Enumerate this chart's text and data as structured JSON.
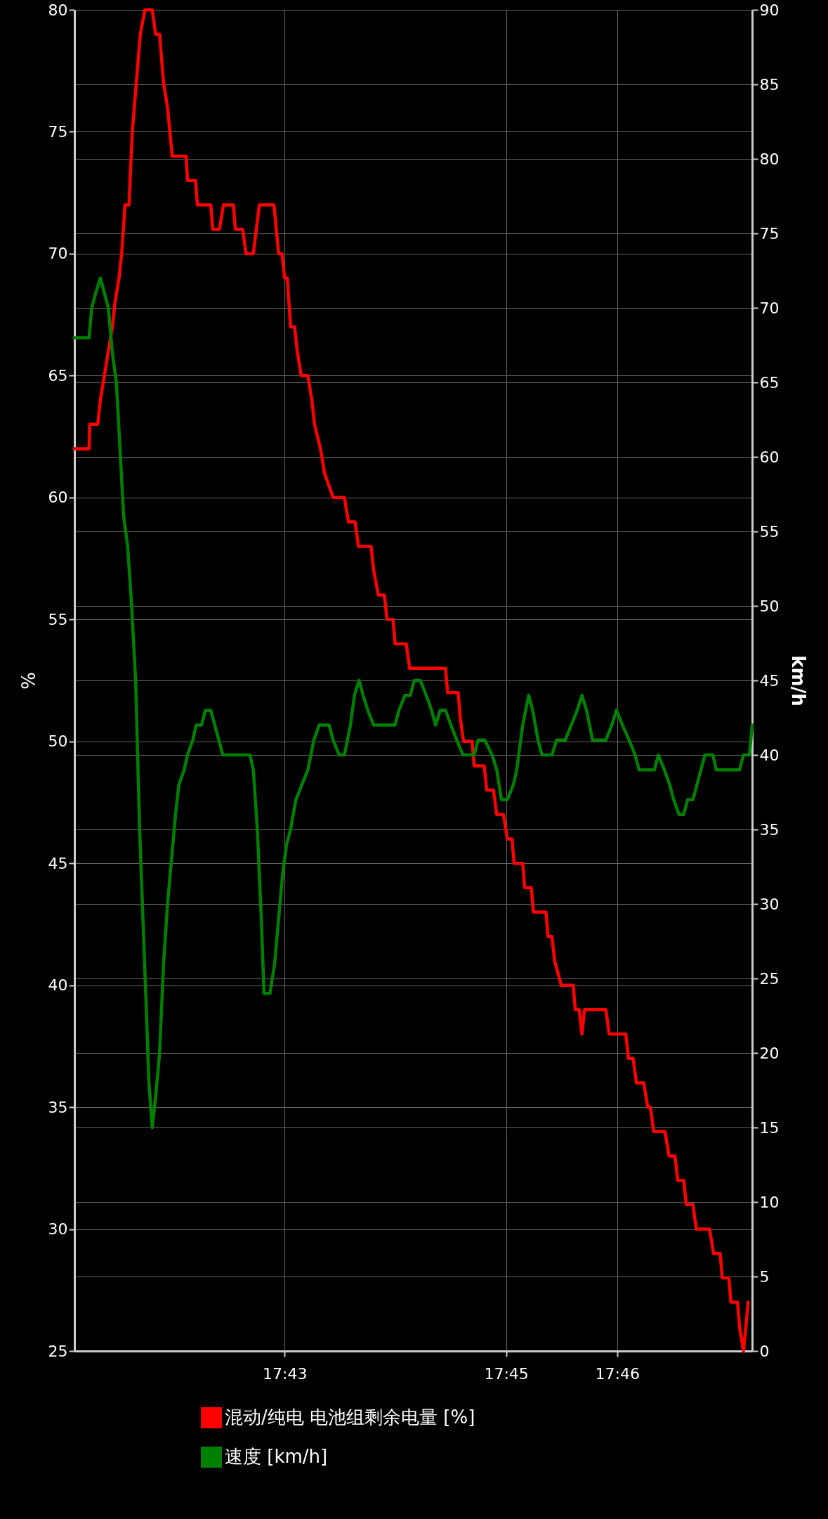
{
  "chart_data": {
    "type": "line",
    "ylabel": "%",
    "y2label": "km/h",
    "xlim": [
      17.6851,
      17.787
    ],
    "xticks": [
      {
        "value": 17.7167,
        "label": "17:43"
      },
      {
        "value": 17.75,
        "label": "17:45"
      },
      {
        "value": 17.7667,
        "label": "17:46"
      }
    ],
    "ylim": [
      25,
      80
    ],
    "yticks": [
      25,
      30,
      35,
      40,
      45,
      50,
      55,
      60,
      65,
      70,
      75,
      80
    ],
    "y2lim": [
      0,
      90
    ],
    "y2ticks": [
      0,
      5,
      10,
      15,
      20,
      25,
      30,
      35,
      40,
      45,
      50,
      55,
      60,
      65,
      70,
      75,
      80,
      85,
      90
    ],
    "grid": true,
    "legend": "bottom",
    "series": [
      {
        "name": "混动/纯电 电池组剩余电量 [%]",
        "color": "#ff0000",
        "x": [
          17.6851,
          17.6873,
          17.6874,
          17.6886,
          17.689,
          17.6896,
          17.6902,
          17.6908,
          17.6912,
          17.6918,
          17.6922,
          17.6927,
          17.6933,
          17.6938,
          17.6944,
          17.695,
          17.6957,
          17.6968,
          17.6973,
          17.6979,
          17.6985,
          17.6991,
          17.6998,
          17.7019,
          17.7021,
          17.7033,
          17.7036,
          17.7056,
          17.7059,
          17.7069,
          17.7075,
          17.709,
          17.7093,
          17.7104,
          17.7109,
          17.712,
          17.7129,
          17.7151,
          17.7158,
          17.7163,
          17.7167,
          17.7171,
          17.7176,
          17.7182,
          17.7186,
          17.7192,
          17.7202,
          17.7208,
          17.7212,
          17.7221,
          17.7227,
          17.724,
          17.7257,
          17.7263,
          17.7273,
          17.7278,
          17.7297,
          17.7301,
          17.7308,
          17.7317,
          17.7321,
          17.733,
          17.7333,
          17.735,
          17.7355,
          17.7409,
          17.7412,
          17.7428,
          17.7431,
          17.7436,
          17.7449,
          17.7452,
          17.7467,
          17.7471,
          17.7481,
          17.7486,
          17.7496,
          17.7502,
          17.7509,
          17.7512,
          17.7525,
          17.7528,
          17.7538,
          17.7541,
          17.756,
          17.7563,
          17.7569,
          17.7573,
          17.7583,
          17.7601,
          17.7604,
          17.761,
          17.7614,
          17.7618,
          17.765,
          17.7655,
          17.768,
          17.7684,
          17.7691,
          17.7696,
          17.7707,
          17.7713,
          17.7717,
          17.7722,
          17.7739,
          17.7745,
          17.7754,
          17.7758,
          17.7767,
          17.7771,
          17.7781,
          17.7786,
          17.7806,
          17.7812,
          17.7822,
          17.7825,
          17.7835,
          17.7838,
          17.7848,
          17.7851,
          17.7857,
          17.7864
        ],
        "values": [
          62,
          62,
          63,
          63,
          64,
          65,
          66,
          67,
          68,
          69,
          70,
          72,
          72,
          75,
          77,
          79,
          80,
          80,
          79,
          79,
          77,
          76,
          74,
          74,
          73,
          73,
          72,
          72,
          71,
          71,
          72,
          72,
          71,
          71,
          70,
          70,
          72,
          72,
          70,
          70,
          69,
          69,
          67,
          67,
          66,
          65,
          65,
          64,
          63,
          62,
          61,
          60,
          60,
          59,
          59,
          58,
          58,
          57,
          56,
          56,
          55,
          55,
          54,
          54,
          53,
          53,
          52,
          52,
          51,
          50,
          50,
          49,
          49,
          48,
          48,
          47,
          47,
          46,
          46,
          45,
          45,
          44,
          44,
          43,
          43,
          42,
          42,
          41,
          40,
          40,
          39,
          39,
          38,
          39,
          39,
          38,
          38,
          37,
          37,
          36,
          36,
          35,
          35,
          34,
          34,
          33,
          33,
          32,
          32,
          31,
          31,
          30,
          30,
          29,
          29,
          28,
          28,
          27,
          27,
          26,
          25,
          27
        ]
      },
      {
        "name": "速度 [km/h]",
        "color": "#008000",
        "axis": "y2",
        "x": [
          17.6851,
          17.6873,
          17.6877,
          17.6883,
          17.689,
          17.6896,
          17.6902,
          17.6908,
          17.6914,
          17.6919,
          17.6925,
          17.6931,
          17.6937,
          17.6943,
          17.6949,
          17.6954,
          17.6959,
          17.6963,
          17.6968,
          17.6973,
          17.6979,
          17.6985,
          17.6991,
          17.6997,
          17.7003,
          17.7008,
          17.7016,
          17.7021,
          17.7029,
          17.7034,
          17.7042,
          17.7048,
          17.7056,
          17.7062,
          17.7074,
          17.7115,
          17.712,
          17.7126,
          17.7132,
          17.7136,
          17.7145,
          17.7152,
          17.7158,
          17.7164,
          17.717,
          17.7176,
          17.7184,
          17.7193,
          17.7202,
          17.7211,
          17.7219,
          17.7234,
          17.724,
          17.7249,
          17.7257,
          17.7266,
          17.7272,
          17.7279,
          17.7285,
          17.7292,
          17.7301,
          17.7333,
          17.7339,
          17.7348,
          17.7356,
          17.7362,
          17.7371,
          17.738,
          17.7388,
          17.7394,
          17.7401,
          17.7409,
          17.7417,
          17.7426,
          17.7435,
          17.7452,
          17.7458,
          17.7468,
          17.7479,
          17.7486,
          17.7493,
          17.7502,
          17.7511,
          17.7516,
          17.7525,
          17.7534,
          17.754,
          17.7548,
          17.7554,
          17.7569,
          17.7576,
          17.7589,
          17.7598,
          17.7607,
          17.7614,
          17.7621,
          17.763,
          17.765,
          17.7659,
          17.7666,
          17.7675,
          17.7685,
          17.7694,
          17.77,
          17.7723,
          17.7729,
          17.7738,
          17.7746,
          17.7752,
          17.776,
          17.7767,
          17.7773,
          17.7781,
          17.7787,
          17.7793,
          17.7799,
          17.7811,
          17.7816,
          17.7851,
          17.7857,
          17.7866,
          17.787
        ],
        "values": [
          68,
          68,
          70,
          71,
          72,
          71,
          70,
          67,
          65,
          61,
          56,
          54,
          50,
          45,
          35,
          29,
          23,
          18,
          15,
          17,
          20,
          26,
          30,
          33,
          36,
          38,
          39,
          40,
          41,
          42,
          42,
          43,
          43,
          42,
          40,
          40,
          39,
          35,
          29,
          24,
          24,
          26,
          29,
          32,
          34,
          35,
          37,
          38,
          39,
          41,
          42,
          42,
          41,
          40,
          40,
          42,
          44,
          45,
          44,
          43,
          42,
          42,
          43,
          44,
          44,
          45,
          45,
          44,
          43,
          42,
          43,
          43,
          42,
          41,
          40,
          40,
          41,
          41,
          40,
          39,
          37,
          37,
          38,
          39,
          42,
          44,
          43,
          41,
          40,
          40,
          41,
          41,
          42,
          43,
          44,
          43,
          41,
          41,
          42,
          43,
          42,
          41,
          40,
          39,
          39,
          40,
          39,
          38,
          37,
          36,
          36,
          37,
          37,
          38,
          39,
          40,
          40,
          39,
          39,
          40,
          40,
          42
        ]
      }
    ]
  }
}
